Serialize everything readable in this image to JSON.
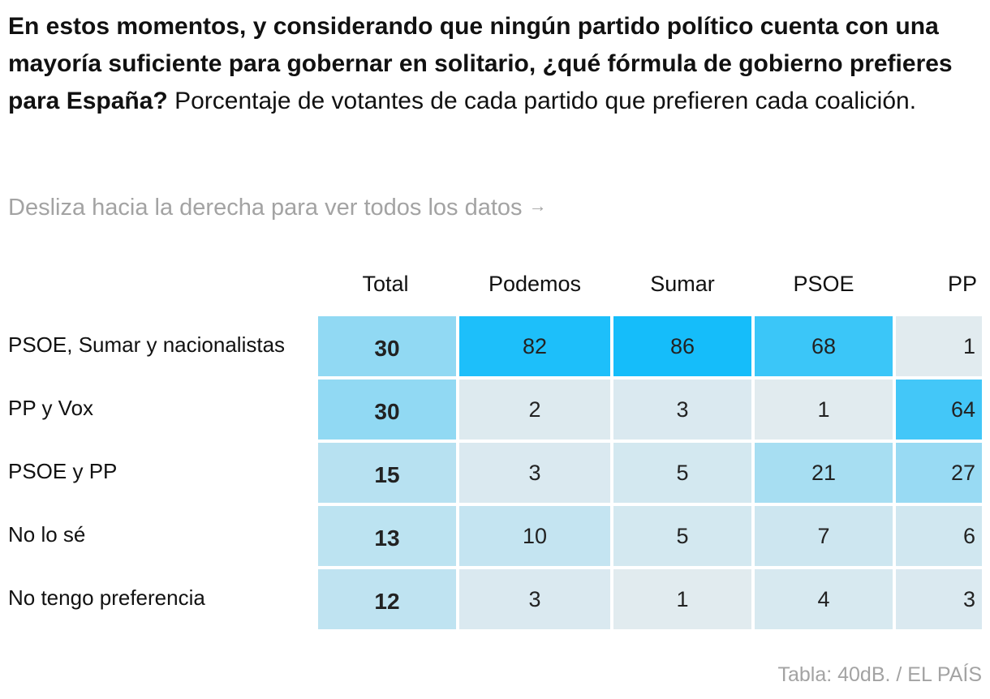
{
  "heading": {
    "question": "En estos momentos, y considerando que ningún partido político cuenta con una mayoría suficiente para gobernar en solitario, ¿qué fórmula de gobierno prefieres para España?",
    "subtitle": "Porcentaje de votantes de cada partido que prefieren cada coalición."
  },
  "hint": {
    "text": "Desliza hacia la derecha para ver todos los datos",
    "arrow": "→"
  },
  "source": "Tabla: 40dB. / EL PAÍS",
  "colors": {
    "scale_low": "#e6ecef",
    "scale_high": "#15bdfa"
  },
  "chart_data": {
    "type": "table",
    "title": "En estos momentos, y considerando que ningún partido político cuenta con una mayoría suficiente para gobernar en solitario, ¿qué fórmula de gobierno prefieres para España?",
    "columns": [
      "Total",
      "Podemos",
      "Sumar",
      "PSOE",
      "PP"
    ],
    "rows": [
      "PSOE, Sumar y nacionalistas",
      "PP y Vox",
      "PSOE y PP",
      "No lo sé",
      "No tengo preferencia"
    ],
    "values": [
      [
        30,
        82,
        86,
        68,
        1
      ],
      [
        30,
        2,
        3,
        1,
        64
      ],
      [
        15,
        3,
        5,
        21,
        27
      ],
      [
        13,
        10,
        5,
        7,
        6
      ],
      [
        12,
        3,
        1,
        4,
        3
      ]
    ],
    "unit": "%"
  }
}
